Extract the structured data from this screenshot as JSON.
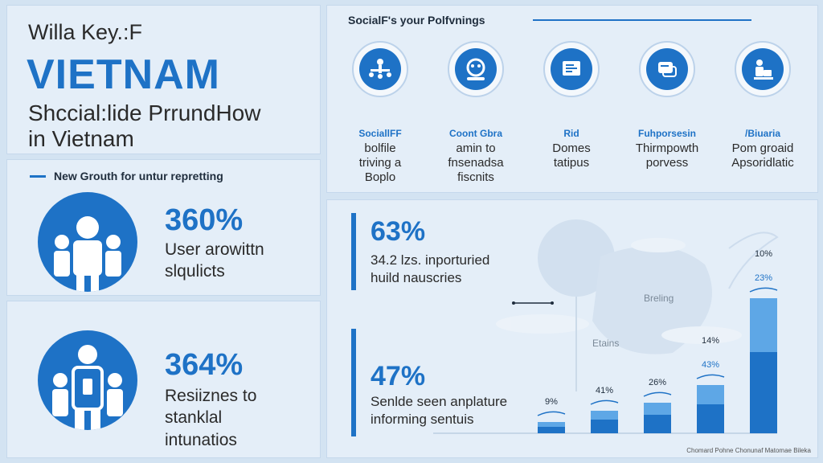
{
  "title": {
    "subtitle": "Willa Key.:F",
    "main": "VIETNAM",
    "tagline_1": "Shccial:lide PrrundHow",
    "tagline_2": "in Vietnam"
  },
  "growth": {
    "heading": "New Grouth for untur repretting",
    "stat_1": {
      "value": "360%",
      "line_1": "User arowittn",
      "line_2": "slqulicts"
    },
    "stat_2": {
      "value": "364%",
      "line_1": "Resiiznes to",
      "line_2": "stanklal",
      "line_3": "intunatios"
    }
  },
  "social": {
    "heading": "SocialF's your Polfvnings",
    "items": [
      {
        "icon": "network-icon",
        "label": "SociallFF",
        "line_1": "bolfile",
        "line_2": "triving a",
        "line_3": "Boplo"
      },
      {
        "icon": "face-icon",
        "label": "Coont Gbra",
        "line_1": "amin to",
        "line_2": "fnsenadsa",
        "line_3": "fiscnits"
      },
      {
        "icon": "screen-icon",
        "label": "Rid",
        "line_1": "Domes",
        "line_2": "tatipus",
        "line_3": ""
      },
      {
        "icon": "chat-icon",
        "label": "Fuhporsesin",
        "line_1": "Thirmpowth",
        "line_2": "porvess",
        "line_3": ""
      },
      {
        "icon": "person-desk-icon",
        "label": "/Biuaria",
        "line_1": "Pom groaid",
        "line_2": "Apsoridlatic",
        "line_3": ""
      }
    ]
  },
  "chart_panel": {
    "stat_1": {
      "value": "63%",
      "line_1": "34.2 lzs. inporturied",
      "line_2": "huild nauscries"
    },
    "stat_2": {
      "value": "47%",
      "line_1": "Senlde seen anplature",
      "line_2": "informing sentuis"
    },
    "map_label_1": "Breling",
    "map_label_2": "Etains",
    "credit": "Chomard Pohne Chonunaf Matomae Bileka"
  },
  "chart_data": {
    "type": "bar",
    "categories": [
      "1",
      "2",
      "3",
      "4",
      "5"
    ],
    "values": [
      9,
      41,
      26,
      43,
      23
    ],
    "bar_labels": [
      "9%",
      "41%",
      "26%",
      "43%",
      "23%"
    ],
    "top_labels": [
      "",
      "",
      "",
      "14%",
      "10%"
    ],
    "relative_heights": [
      0.07,
      0.14,
      0.19,
      0.3,
      0.84
    ],
    "colors": {
      "bar": "#1e72c6",
      "bar_light": "#5ea7e6"
    }
  }
}
